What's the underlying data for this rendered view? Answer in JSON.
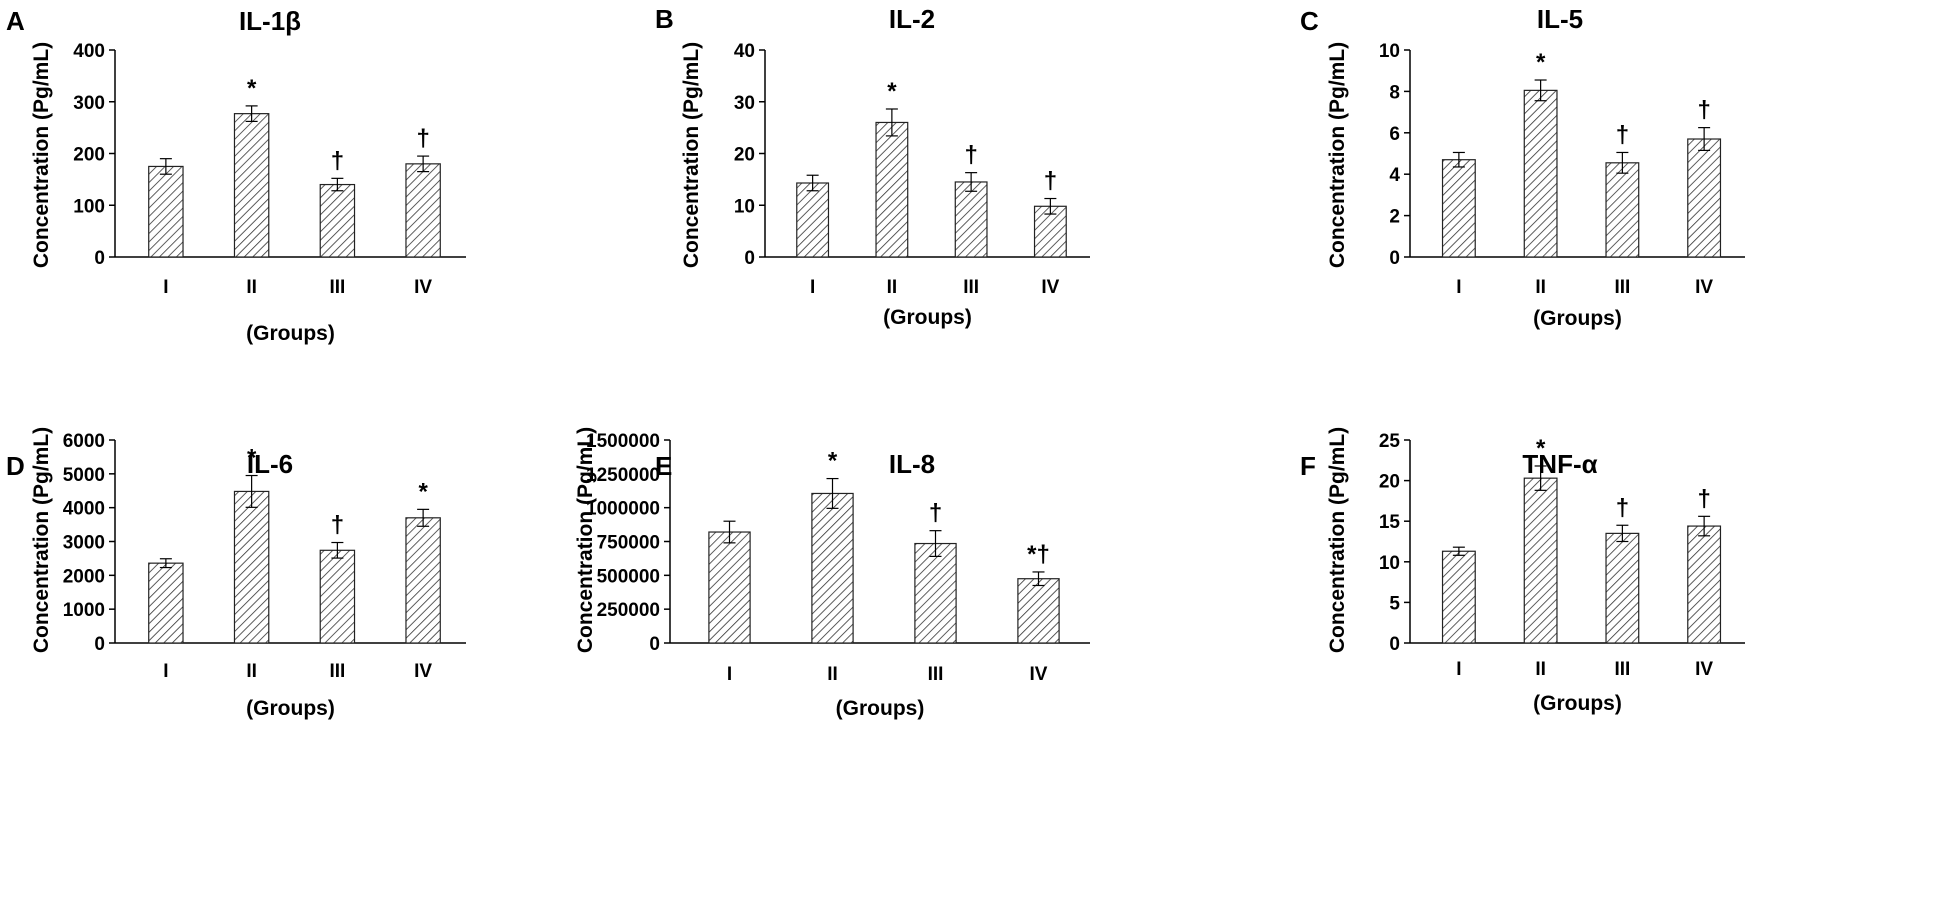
{
  "chart_data": [
    {
      "type": "bar",
      "panel": "A",
      "title": "IL-1β",
      "xlabel": "(Groups)",
      "ylabel": "Concentration  (Pg/mL)",
      "categories": [
        "I",
        "II",
        "III",
        "IV"
      ],
      "values": [
        175,
        277,
        140,
        180
      ],
      "errors": [
        15,
        15,
        12,
        15
      ],
      "significance": [
        "",
        "*",
        "†",
        "†"
      ],
      "ylim": [
        0,
        400
      ],
      "yticks": [
        "0",
        "100",
        "200",
        "300",
        "400"
      ],
      "grid": false,
      "bar_pattern": "diagonal-hatch"
    },
    {
      "type": "bar",
      "panel": "B",
      "title": "IL-2",
      "xlabel": "(Groups)",
      "ylabel": "Concentration  (Pg/mL)",
      "categories": [
        "I",
        "II",
        "III",
        "IV"
      ],
      "values": [
        14.3,
        26,
        14.5,
        9.8
      ],
      "errors": [
        1.5,
        2.6,
        1.8,
        1.5
      ],
      "significance": [
        "",
        "*",
        "†",
        "†"
      ],
      "ylim": [
        0,
        40
      ],
      "yticks": [
        "0",
        "10",
        "20",
        "30",
        "40"
      ],
      "grid": false,
      "bar_pattern": "diagonal-hatch"
    },
    {
      "type": "bar",
      "panel": "C",
      "title": "IL-5",
      "xlabel": "(Groups)",
      "ylabel": "Concentration  (Pg/mL)",
      "categories": [
        "I",
        "II",
        "III",
        "IV"
      ],
      "values": [
        4.7,
        8.05,
        4.55,
        5.7
      ],
      "errors": [
        0.35,
        0.5,
        0.5,
        0.55
      ],
      "significance": [
        "",
        "*",
        "†",
        "†"
      ],
      "ylim": [
        0,
        10
      ],
      "yticks": [
        "0",
        "2",
        "4",
        "6",
        "8",
        "10"
      ],
      "grid": false,
      "bar_pattern": "diagonal-hatch"
    },
    {
      "type": "bar",
      "panel": "D",
      "title": "IL-6",
      "xlabel": "(Groups)",
      "ylabel": "Concentration  (Pg/mL)",
      "categories": [
        "I",
        "II",
        "III",
        "IV"
      ],
      "values": [
        2360,
        4480,
        2740,
        3700
      ],
      "errors": [
        130,
        470,
        230,
        250
      ],
      "significance": [
        "",
        "*",
        "†",
        "*"
      ],
      "ylim": [
        0,
        6000
      ],
      "yticks": [
        "0",
        "1000",
        "2000",
        "3000",
        "4000",
        "5000",
        "6000"
      ],
      "grid": false,
      "bar_pattern": "diagonal-hatch"
    },
    {
      "type": "bar",
      "panel": "E",
      "title": "IL-8",
      "xlabel": "(Groups)",
      "ylabel": "Concentration  (Pg/mL)",
      "categories": [
        "I",
        "II",
        "III",
        "IV"
      ],
      "values": [
        820000,
        1105000,
        735000,
        475000
      ],
      "errors": [
        80000,
        110000,
        95000,
        50000
      ],
      "significance": [
        "",
        "*",
        "†",
        "*†"
      ],
      "ylim": [
        0,
        1500000
      ],
      "yticks": [
        "0",
        "250000",
        "500000",
        "750000",
        "1000000",
        "1250000",
        "1500000"
      ],
      "grid": false,
      "bar_pattern": "diagonal-hatch"
    },
    {
      "type": "bar",
      "panel": "F",
      "title": "TNF-α",
      "xlabel": "(Groups)",
      "ylabel": "Concentration  (Pg/mL)",
      "categories": [
        "I",
        "II",
        "III",
        "IV"
      ],
      "values": [
        11.3,
        20.3,
        13.5,
        14.4
      ],
      "errors": [
        0.5,
        1.5,
        1.0,
        1.2
      ],
      "significance": [
        "",
        "*",
        "†",
        "†"
      ],
      "ylim": [
        0,
        25
      ],
      "yticks": [
        "0",
        "5",
        "10",
        "15",
        "20",
        "25"
      ],
      "grid": false,
      "bar_pattern": "diagonal-hatch"
    }
  ]
}
